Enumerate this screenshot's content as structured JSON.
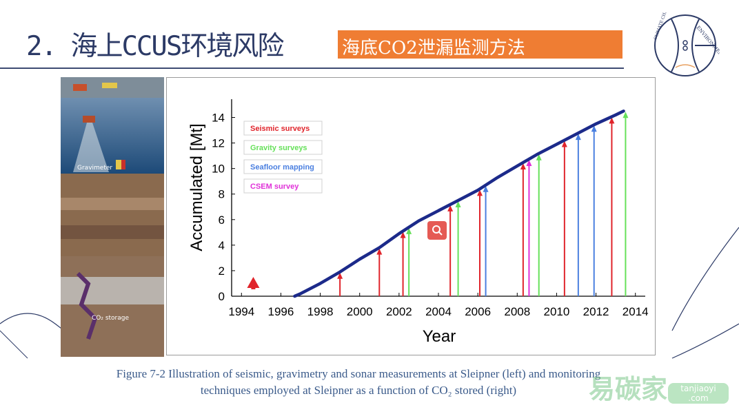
{
  "header": {
    "title": "2. 海上CCUS环境风险",
    "subtitle": "海底CO2泄漏监测方法"
  },
  "logo": {
    "text_top": "ENVIRONMENT",
    "text_left": "CLIMATE CHANG"
  },
  "left_image": {
    "label_gravimeter": "Gravimeter",
    "label_storage": "CO₂ storage"
  },
  "chart_data": {
    "type": "line",
    "xlabel": "Year",
    "ylabel": "Accumulated [Mt]",
    "xlim": [
      1993.5,
      2014.5
    ],
    "ylim": [
      0,
      15
    ],
    "xticks": [
      "1994",
      "1996",
      "1998",
      "2000",
      "2002",
      "2004",
      "2006",
      "2008",
      "2010",
      "2012",
      "2014"
    ],
    "yticks": [
      "0",
      "2",
      "4",
      "6",
      "8",
      "10",
      "12",
      "14"
    ],
    "series": [
      {
        "name": "Accumulated CO2",
        "color": "#1c2a8a",
        "x": [
          1996.7,
          1997,
          1998,
          1999,
          2000,
          2001,
          2002,
          2003,
          2004,
          2005,
          2006,
          2007,
          2008,
          2009,
          2010,
          2011,
          2012,
          2013,
          2013.4
        ],
        "y": [
          0,
          0.2,
          1.0,
          1.9,
          2.9,
          3.8,
          4.9,
          5.9,
          6.7,
          7.5,
          8.3,
          9.3,
          10.2,
          11.1,
          11.9,
          12.7,
          13.5,
          14.2,
          14.5
        ]
      }
    ],
    "surveys": [
      {
        "type": "Seismic surveys",
        "color": "#e0242b",
        "years": [
          1994.6,
          1999.0,
          2001.0,
          2002.2,
          2004.6,
          2006.1,
          2008.3,
          2010.4,
          2012.8
        ]
      },
      {
        "type": "Gravity surveys",
        "color": "#66e05a",
        "years": [
          2002.5,
          2005.0,
          2009.1,
          2013.5
        ]
      },
      {
        "type": "Seafloor mapping",
        "color": "#4a7fe0",
        "years": [
          2006.4,
          2011.1,
          2011.9
        ]
      },
      {
        "type": "CSEM survey",
        "color": "#e030d8",
        "years": [
          2008.6
        ]
      }
    ],
    "legend_position": "top-left"
  },
  "caption": {
    "line1": "Figure 7-2 Illustration of seismic, gravimetry and sonar measurements at Sleipner (left) and monitoring",
    "line2": "techniques employed at Sleipner as a function of CO₂ stored (right)"
  },
  "watermark": {
    "cn": "易碳家",
    "en": "tanjiaoyi",
    "domain": ".com"
  }
}
